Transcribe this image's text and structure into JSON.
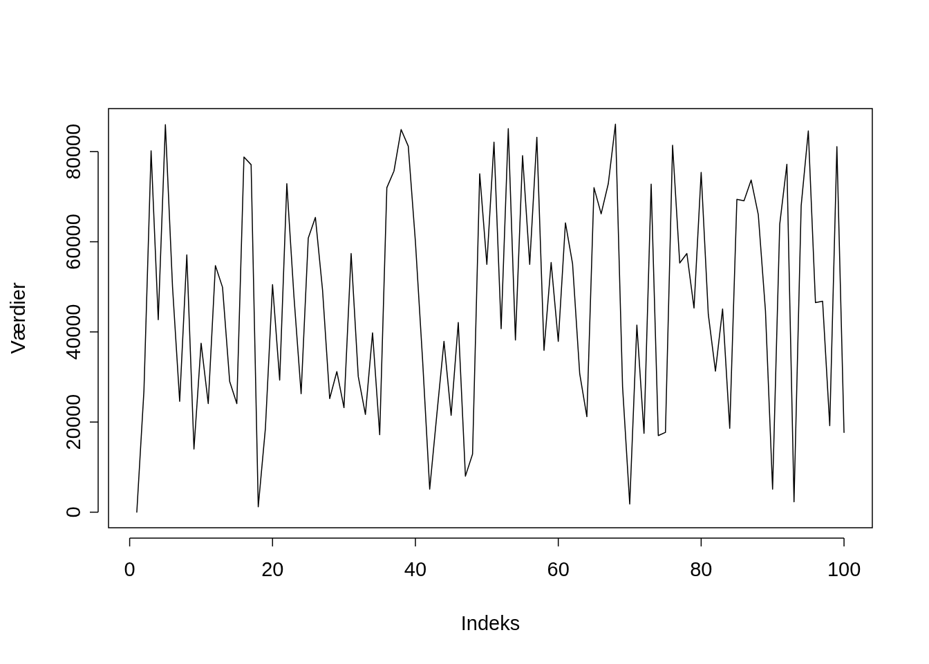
{
  "chart_data": {
    "type": "line",
    "xlabel": "Indeks",
    "ylabel": "Værdier",
    "x": [
      1,
      2,
      3,
      4,
      5,
      6,
      7,
      8,
      9,
      10,
      11,
      12,
      13,
      14,
      15,
      16,
      17,
      18,
      19,
      20,
      21,
      22,
      23,
      24,
      25,
      26,
      27,
      28,
      29,
      30,
      31,
      32,
      33,
      34,
      35,
      36,
      37,
      38,
      39,
      40,
      41,
      42,
      43,
      44,
      45,
      46,
      47,
      48,
      49,
      50,
      51,
      52,
      53,
      54,
      55,
      56,
      57,
      58,
      59,
      60,
      61,
      62,
      63,
      64,
      65,
      66,
      67,
      68,
      69,
      70,
      71,
      72,
      73,
      74,
      75,
      76,
      77,
      78,
      79,
      80,
      81,
      82,
      83,
      84,
      85,
      86,
      87,
      88,
      89,
      90,
      91,
      92,
      93,
      94,
      95,
      96,
      97,
      98,
      99,
      100
    ],
    "series": [
      {
        "color": "#000000",
        "values": [
          0,
          27000,
          80200,
          42700,
          86000,
          50000,
          24600,
          57100,
          14000,
          37500,
          24100,
          54700,
          49900,
          29000,
          24100,
          78800,
          77100,
          1200,
          18600,
          50500,
          29300,
          72900,
          47800,
          26300,
          60800,
          65400,
          49300,
          25200,
          31200,
          23200,
          57400,
          30100,
          21700,
          39800,
          17200,
          72000,
          75700,
          84900,
          81200,
          60000,
          33900,
          5100,
          21700,
          37900,
          21500,
          42100,
          8000,
          12900,
          75100,
          55000,
          82100,
          40700,
          85100,
          38200,
          79100,
          55000,
          83200,
          35900,
          55400,
          37900,
          64200,
          55100,
          30700,
          21200,
          72000,
          66200,
          72900,
          86100,
          27800,
          1800,
          41500,
          17500,
          72800,
          17000,
          17700,
          81400,
          55300,
          57400,
          45300,
          75400,
          43900,
          31300,
          45100,
          18600,
          69400,
          69100,
          73700,
          66000,
          44700,
          5100,
          63900,
          77200,
          2300,
          68000,
          84600,
          46500,
          46800,
          19200,
          81100,
          17700
        ]
      }
    ],
    "xlim": [
      -2.96,
      103.96
    ],
    "ylim": [
      -3450,
      89550
    ],
    "xticks": [
      0,
      20,
      40,
      60,
      80,
      100
    ],
    "yticks": [
      0,
      20000,
      40000,
      60000,
      80000
    ],
    "grid": false,
    "marker": "none",
    "line_style": "solid"
  }
}
